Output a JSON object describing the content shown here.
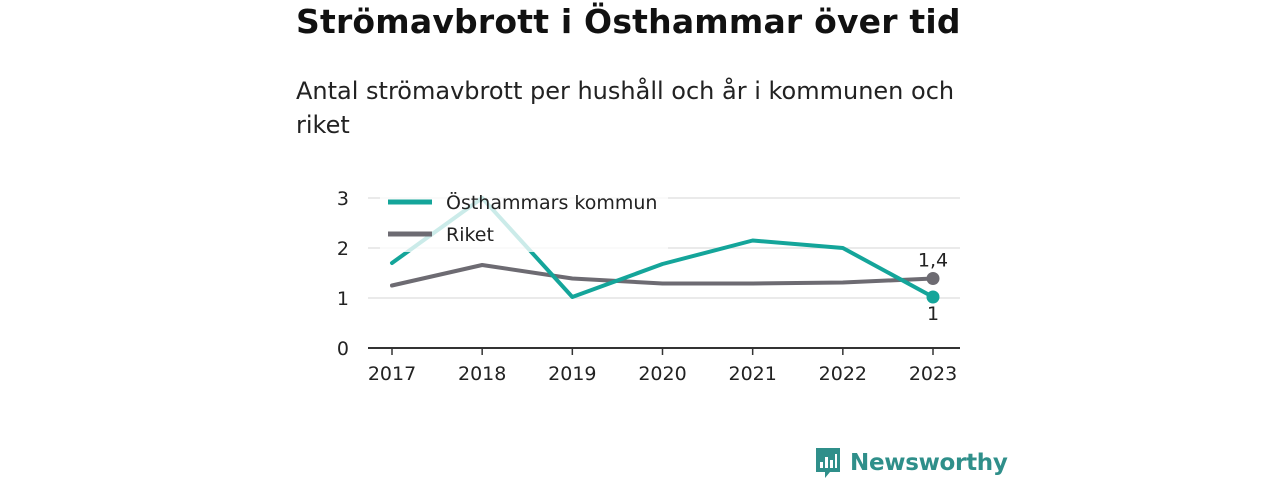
{
  "header": {
    "title": "Strömavbrott i Östhammar över tid",
    "subtitle": "Antal strömavbrott per hushåll och år i kommunen och riket"
  },
  "colors": {
    "kommun": "#14a59a",
    "riket": "#6d6b72",
    "grid": "#dddddd",
    "axis": "#333333",
    "logo": "#2f8f8a"
  },
  "brand": {
    "name": "Newsworthy",
    "icon": "newsworthy-logo-icon"
  },
  "chart_data": {
    "type": "line",
    "x": [
      "2017",
      "2018",
      "2019",
      "2020",
      "2021",
      "2022",
      "2023"
    ],
    "ylim": [
      0,
      3
    ],
    "yticks": [
      "0",
      "1",
      "2",
      "3"
    ],
    "grid": true,
    "legend": "top-left",
    "series": [
      {
        "name": "Östhammars kommun",
        "values": [
          1.7,
          3.0,
          1.02,
          1.68,
          2.15,
          2.0,
          1.02
        ],
        "end_label": "1"
      },
      {
        "name": "Riket",
        "values": [
          1.25,
          1.66,
          1.39,
          1.29,
          1.29,
          1.31,
          1.39
        ],
        "end_label": "1,4"
      }
    ]
  }
}
